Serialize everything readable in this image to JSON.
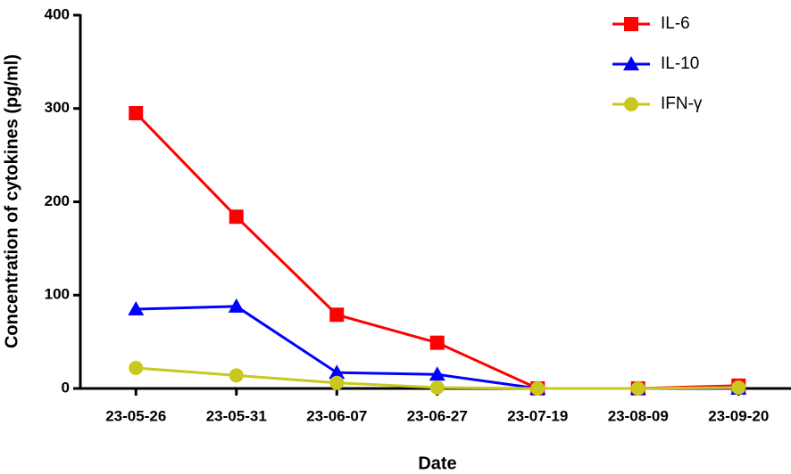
{
  "chart_data": {
    "type": "line",
    "x_label": "Date",
    "y_label": "Concentration of cytokines (pg/ml)",
    "categories": [
      "23-05-26",
      "23-05-31",
      "23-06-07",
      "23-06-27",
      "23-07-19",
      "23-08-09",
      "23-09-20"
    ],
    "series": [
      {
        "name": "IL-6",
        "color": "#ff0000",
        "marker": "square",
        "values": [
          295,
          184,
          79,
          49,
          0,
          0,
          3
        ]
      },
      {
        "name": "IL-10",
        "color": "#0000ff",
        "marker": "triangle",
        "values": [
          85,
          88,
          17,
          15,
          0,
          0,
          0
        ]
      },
      {
        "name": "IFN-γ",
        "color": "#c8c81e",
        "marker": "circle",
        "values": [
          22,
          14,
          6,
          1,
          0,
          0,
          1
        ]
      }
    ],
    "ylim": [
      0,
      400
    ],
    "yticks": [
      0,
      100,
      200,
      300,
      400
    ],
    "legend": "top-right"
  }
}
